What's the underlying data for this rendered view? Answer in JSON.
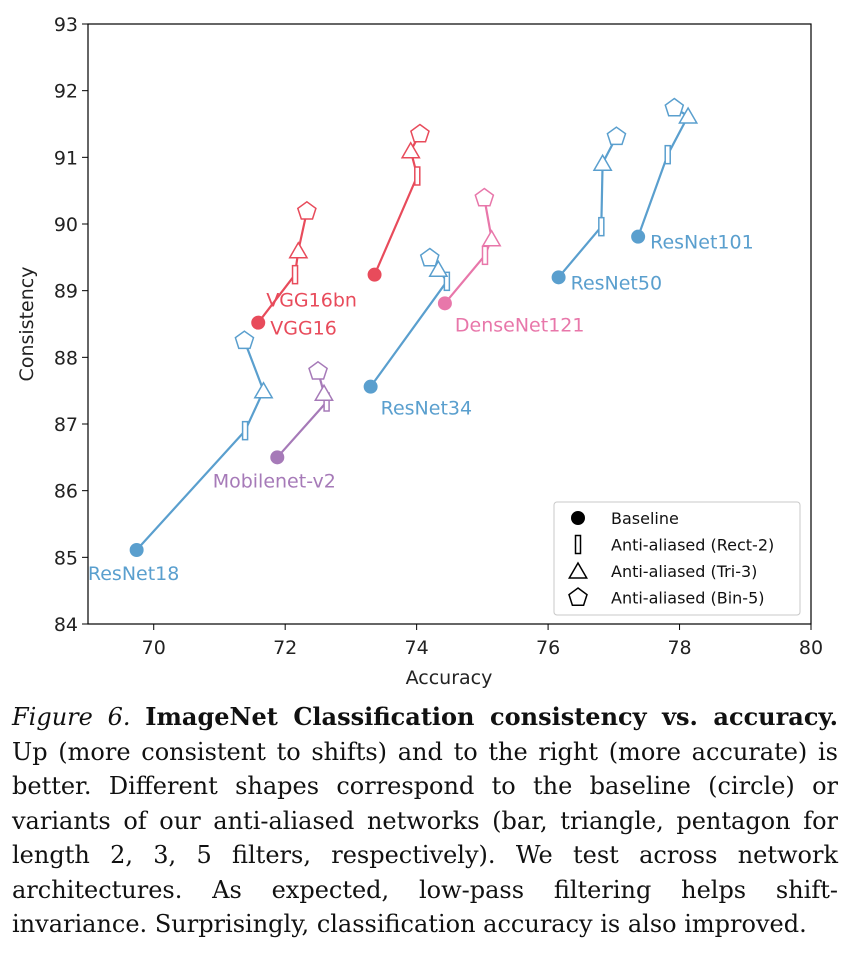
{
  "chart_data": {
    "type": "scatter",
    "title": "",
    "xlabel": "Accuracy",
    "ylabel": "Consistency",
    "xlim": [
      69,
      80
    ],
    "ylim": [
      84,
      93
    ],
    "xticks": [
      70,
      72,
      74,
      76,
      78,
      80
    ],
    "yticks": [
      84,
      85,
      86,
      87,
      88,
      89,
      90,
      91,
      92,
      93
    ],
    "grid": false,
    "legend_position": "bottom-right",
    "legend": [
      {
        "marker": "circle",
        "label": "Baseline"
      },
      {
        "marker": "bar",
        "label": "Anti-aliased (Rect-2)"
      },
      {
        "marker": "triangle",
        "label": "Anti-aliased (Tri-3)"
      },
      {
        "marker": "pentagon",
        "label": "Anti-aliased (Bin-5)"
      }
    ],
    "series": [
      {
        "name": "ResNet18",
        "color": "#5a9fce",
        "label_position": "below",
        "points": [
          {
            "variant": "Baseline",
            "x": 69.74,
            "y": 85.11
          },
          {
            "variant": "Rect-2",
            "x": 71.39,
            "y": 86.9
          },
          {
            "variant": "Tri-3",
            "x": 71.67,
            "y": 87.5
          },
          {
            "variant": "Bin-5",
            "x": 71.38,
            "y": 88.25
          }
        ]
      },
      {
        "name": "Mobilenet-v2",
        "color": "#a67ab8",
        "label_position": "below",
        "points": [
          {
            "variant": "Baseline",
            "x": 71.88,
            "y": 86.5
          },
          {
            "variant": "Rect-2",
            "x": 72.63,
            "y": 87.33
          },
          {
            "variant": "Tri-3",
            "x": 72.59,
            "y": 87.46
          },
          {
            "variant": "Bin-5",
            "x": 72.5,
            "y": 87.79
          }
        ]
      },
      {
        "name": "VGG16",
        "color": "#e84b5b",
        "label_position": "right",
        "points": [
          {
            "variant": "Baseline",
            "x": 71.59,
            "y": 88.52
          },
          {
            "variant": "Rect-2",
            "x": 72.15,
            "y": 89.24
          },
          {
            "variant": "Tri-3",
            "x": 72.2,
            "y": 89.6
          },
          {
            "variant": "Bin-5",
            "x": 72.33,
            "y": 90.19
          }
        ]
      },
      {
        "name": "VGG16bn",
        "color": "#e84b5b",
        "label_position": "below",
        "points": [
          {
            "variant": "Baseline",
            "x": 73.36,
            "y": 89.24
          },
          {
            "variant": "Rect-2",
            "x": 74.01,
            "y": 90.72
          },
          {
            "variant": "Tri-3",
            "x": 73.91,
            "y": 91.1
          },
          {
            "variant": "Bin-5",
            "x": 74.05,
            "y": 91.35
          }
        ]
      },
      {
        "name": "ResNet34",
        "color": "#5a9fce",
        "label_position": "below-right",
        "points": [
          {
            "variant": "Baseline",
            "x": 73.3,
            "y": 87.56
          },
          {
            "variant": "Rect-2",
            "x": 74.46,
            "y": 89.14
          },
          {
            "variant": "Tri-3",
            "x": 74.33,
            "y": 89.32
          },
          {
            "variant": "Bin-5",
            "x": 74.2,
            "y": 89.49
          }
        ]
      },
      {
        "name": "DenseNet121",
        "color": "#e877aa",
        "label_position": "below-right",
        "points": [
          {
            "variant": "Baseline",
            "x": 74.43,
            "y": 88.81
          },
          {
            "variant": "Rect-2",
            "x": 75.04,
            "y": 89.53
          },
          {
            "variant": "Tri-3",
            "x": 75.14,
            "y": 89.78
          },
          {
            "variant": "Bin-5",
            "x": 75.03,
            "y": 90.39
          }
        ]
      },
      {
        "name": "ResNet50",
        "color": "#5a9fce",
        "label_position": "right",
        "points": [
          {
            "variant": "Baseline",
            "x": 76.16,
            "y": 89.2
          },
          {
            "variant": "Rect-2",
            "x": 76.81,
            "y": 89.96
          },
          {
            "variant": "Tri-3",
            "x": 76.83,
            "y": 90.91
          },
          {
            "variant": "Bin-5",
            "x": 77.04,
            "y": 91.31
          }
        ]
      },
      {
        "name": "ResNet101",
        "color": "#5a9fce",
        "label_position": "right",
        "points": [
          {
            "variant": "Baseline",
            "x": 77.37,
            "y": 89.81
          },
          {
            "variant": "Rect-2",
            "x": 77.82,
            "y": 91.04
          },
          {
            "variant": "Tri-3",
            "x": 78.13,
            "y": 91.62
          },
          {
            "variant": "Bin-5",
            "x": 77.92,
            "y": 91.74
          }
        ]
      }
    ]
  },
  "caption": {
    "figure_label": "Figure 6.",
    "title": "ImageNet Classification consistency vs. accuracy.",
    "body": "Up (more consistent to shifts) and to the right (more accurate) is better. Different shapes correspond to the baseline (circle) or variants of our anti-aliased networks (bar, triangle, pentagon for length 2, 3, 5 filters, respectively). We test across network architectures. As expected, low-pass filtering helps shift-invariance. Surprisingly, classification accuracy is also improved."
  }
}
